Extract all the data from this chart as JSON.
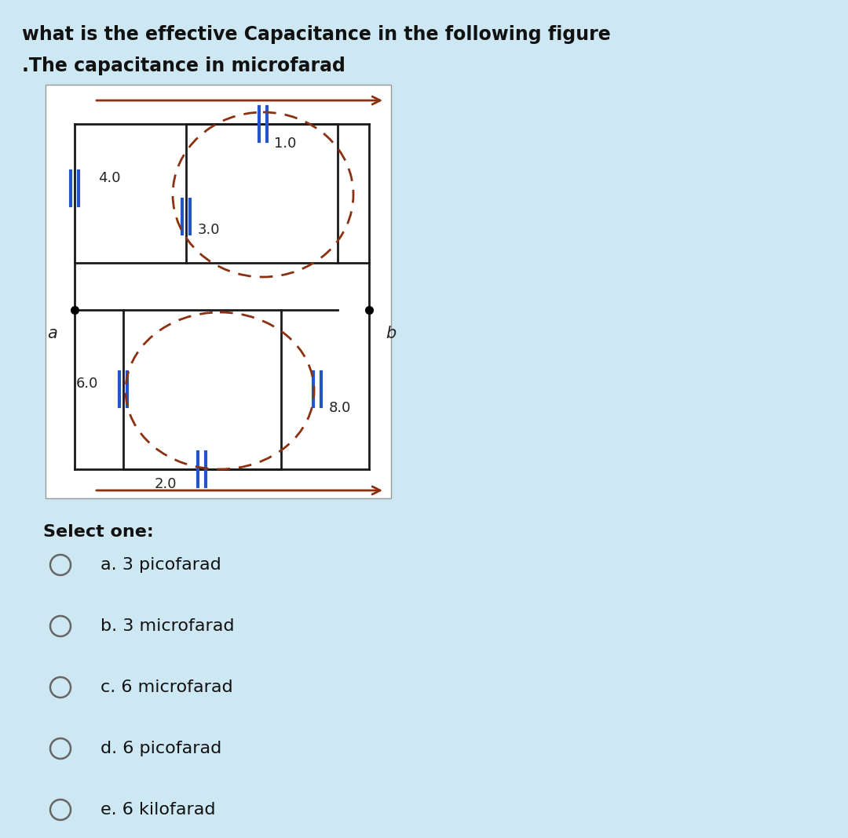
{
  "title_line1": "what is the effective Capacitance in the following figure",
  "title_line2": ".The capacitance in microfarad",
  "bg_color": "#cde8f2",
  "diagram_bg": "#ffffff",
  "circuit_line_color": "#1a1a1a",
  "capacitor_color": "#2255cc",
  "dashed_color": "#8b3010",
  "arrow_color": "#8b3010",
  "C1": "4.0",
  "C2": "1.0",
  "C3": "3.0",
  "C4": "6.0",
  "C5": "2.0",
  "C6": "8.0",
  "select_label": "Select one:",
  "options": [
    "a. 3 picofarad",
    "b. 3 microfarad",
    "c. 6 microfarad",
    "d. 6 picofarad",
    "e. 6 kilofarad"
  ],
  "label_a": "a",
  "label_b": "b"
}
